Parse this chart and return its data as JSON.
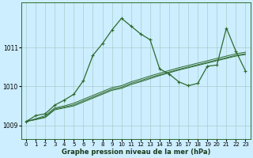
{
  "xlabel": "Graphe pression niveau de la mer (hPa)",
  "background_color": "#cceeff",
  "grid_color": "#aacccc",
  "line_color": "#2d6a2d",
  "xlim": [
    -0.5,
    23.5
  ],
  "ylim": [
    1008.65,
    1012.15
  ],
  "yticks": [
    1009,
    1010,
    1011
  ],
  "xticks": [
    0,
    1,
    2,
    3,
    4,
    5,
    6,
    7,
    8,
    9,
    10,
    11,
    12,
    13,
    14,
    15,
    16,
    17,
    18,
    19,
    20,
    21,
    22,
    23
  ],
  "series_straight": [
    [
      1009.1,
      1009.15,
      1009.2,
      1009.4,
      1009.45,
      1009.5,
      1009.6,
      1009.7,
      1009.8,
      1009.9,
      1009.95,
      1010.05,
      1010.12,
      1010.2,
      1010.28,
      1010.35,
      1010.42,
      1010.48,
      1010.54,
      1010.6,
      1010.66,
      1010.72,
      1010.78,
      1010.82
    ],
    [
      1009.1,
      1009.15,
      1009.22,
      1009.42,
      1009.47,
      1009.53,
      1009.63,
      1009.73,
      1009.83,
      1009.93,
      1009.98,
      1010.08,
      1010.15,
      1010.23,
      1010.3,
      1010.37,
      1010.44,
      1010.5,
      1010.56,
      1010.62,
      1010.68,
      1010.74,
      1010.8,
      1010.84
    ],
    [
      1009.1,
      1009.17,
      1009.25,
      1009.45,
      1009.5,
      1009.57,
      1009.67,
      1009.77,
      1009.87,
      1009.97,
      1010.02,
      1010.12,
      1010.19,
      1010.27,
      1010.34,
      1010.41,
      1010.48,
      1010.54,
      1010.6,
      1010.66,
      1010.72,
      1010.78,
      1010.84,
      1010.88
    ]
  ],
  "series_main": [
    1009.1,
    1009.25,
    1009.3,
    1009.52,
    1009.65,
    1009.8,
    1010.15,
    1010.8,
    1011.1,
    1011.45,
    1011.75,
    1011.55,
    1011.35,
    1011.2,
    1010.45,
    1010.32,
    1010.12,
    1010.02,
    1010.08,
    1010.52,
    1010.55,
    1011.5,
    1010.9,
    1010.4
  ]
}
